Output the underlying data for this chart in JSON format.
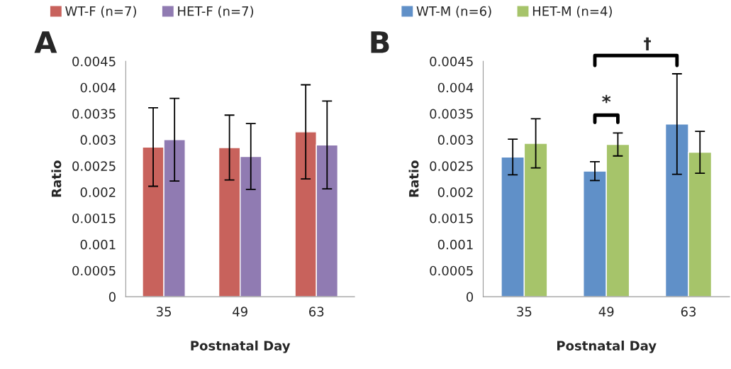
{
  "chart_data": [
    {
      "type": "bar",
      "categories": [
        "35",
        "49",
        "63"
      ],
      "xlabel": "Postnatal Day",
      "ylabel": "Ratio",
      "ylim": [
        0,
        0.0045
      ],
      "yticks": [
        0,
        0.0005,
        0.001,
        0.0015,
        0.002,
        0.0025,
        0.003,
        0.0035,
        0.004,
        0.0045
      ],
      "grid": false,
      "legend": "top left",
      "annotations": [
        "A"
      ],
      "series": [
        {
          "name": "WT-F (n=7)",
          "color": "#c8625c",
          "values": [
            0.00286,
            0.00285,
            0.00315
          ],
          "errors": [
            0.00075,
            0.00062,
            0.0009
          ]
        },
        {
          "name": "HET-F (n=7)",
          "color": "#907bb2",
          "values": [
            0.003,
            0.00268,
            0.0029
          ],
          "errors": [
            0.00079,
            0.00063,
            0.00084
          ]
        }
      ]
    },
    {
      "type": "bar",
      "categories": [
        "35",
        "49",
        "63"
      ],
      "xlabel": "Postnatal Day",
      "ylabel": "Ratio",
      "ylim": [
        0,
        0.0045
      ],
      "yticks": [
        0,
        0.0005,
        0.001,
        0.0015,
        0.002,
        0.0025,
        0.003,
        0.0035,
        0.004,
        0.0045
      ],
      "grid": false,
      "legend": "top left",
      "annotations": [
        "B",
        "*",
        "†"
      ],
      "series": [
        {
          "name": "WT-M (n=6)",
          "color": "#6090c8",
          "values": [
            0.00267,
            0.0024,
            0.0033
          ],
          "errors": [
            0.00034,
            0.00018,
            0.00096
          ]
        },
        {
          "name": "HET-M (n=4)",
          "color": "#a6c46a",
          "values": [
            0.00293,
            0.00291,
            0.00276
          ],
          "errors": [
            0.00047,
            0.00022,
            0.0004
          ]
        }
      ]
    }
  ]
}
